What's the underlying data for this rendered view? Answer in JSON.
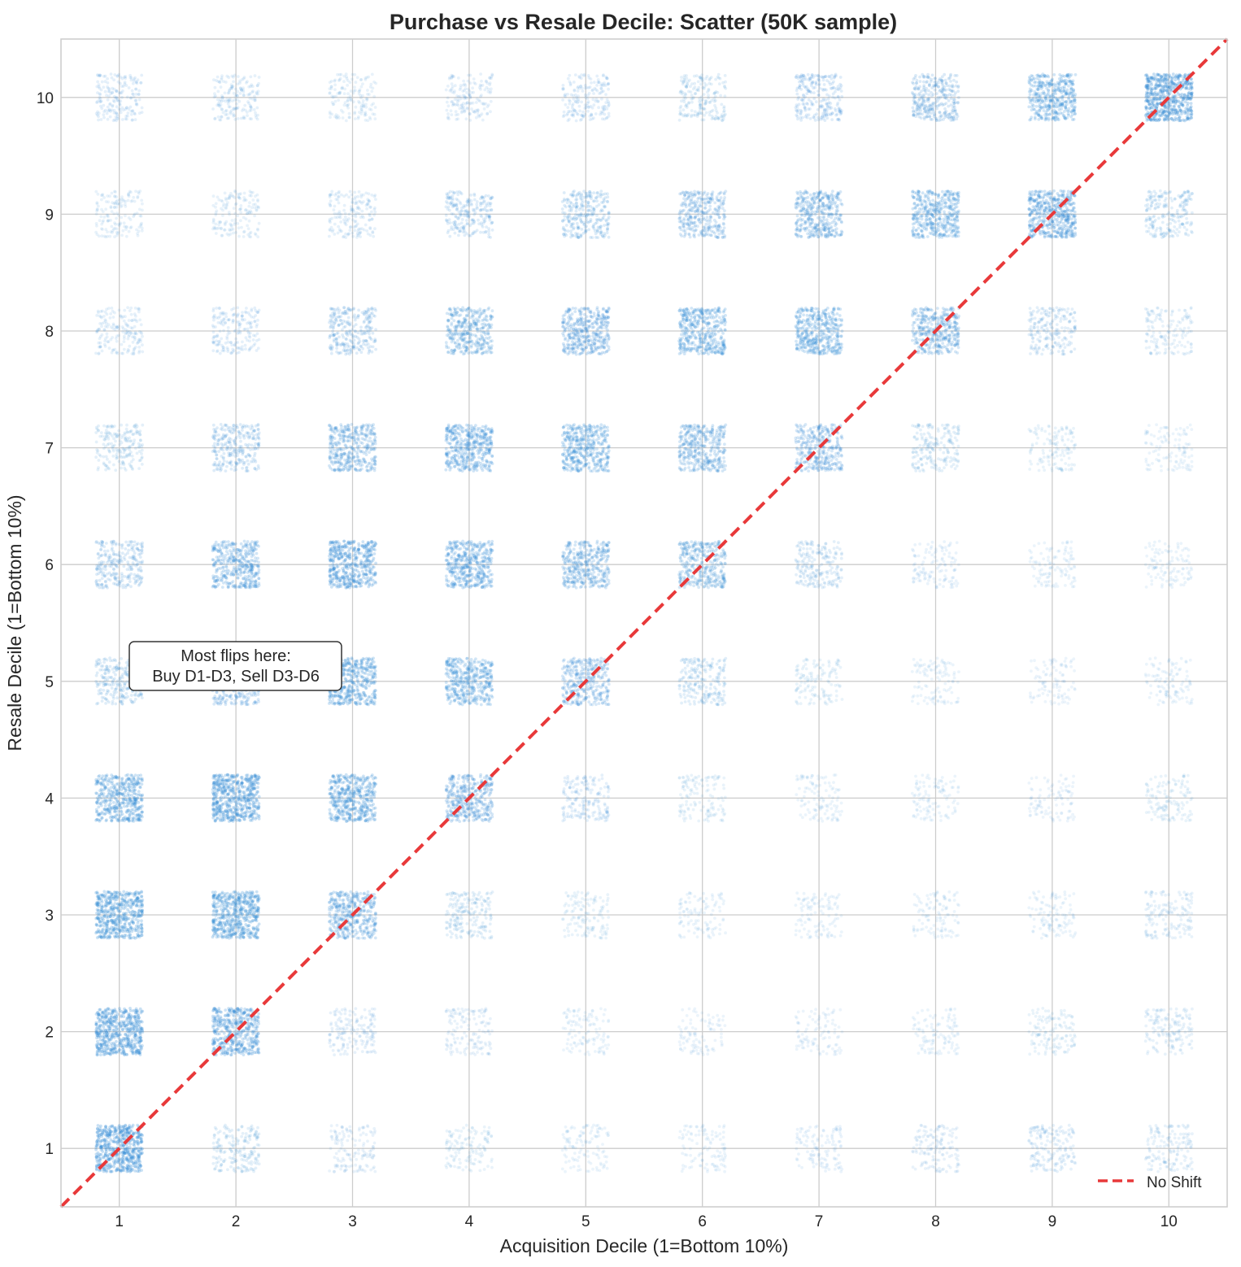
{
  "chart_data": {
    "type": "scatter",
    "title": "Purchase vs Resale Decile: Scatter (50K sample)",
    "xlabel": "Acquisition Decile (1=Bottom 10%)",
    "ylabel": "Resale Decile (1=Bottom 10%)",
    "xlim": [
      0.5,
      10.5
    ],
    "ylim": [
      0.5,
      10.5
    ],
    "x_ticks": [
      "1",
      "2",
      "3",
      "4",
      "5",
      "6",
      "7",
      "8",
      "9",
      "10"
    ],
    "y_ticks": [
      "1",
      "2",
      "3",
      "4",
      "5",
      "6",
      "7",
      "8",
      "9",
      "10"
    ],
    "grid": true,
    "point_color": "#3a8fd6",
    "jitter": 0.2,
    "series": [
      {
        "name": "",
        "x_decile": [
          1,
          2,
          3,
          4,
          5,
          6,
          7,
          8,
          9,
          10
        ],
        "y_decile": [
          1,
          2,
          3,
          4,
          5,
          6,
          7,
          8,
          9,
          10
        ],
        "relative_density_by_y": [
          [
            0.95,
            0.3,
            0.2,
            0.18,
            0.15,
            0.14,
            0.16,
            0.2,
            0.25,
            0.22
          ],
          [
            0.92,
            0.8,
            0.24,
            0.2,
            0.15,
            0.12,
            0.12,
            0.14,
            0.18,
            0.22
          ],
          [
            0.88,
            0.88,
            0.7,
            0.3,
            0.18,
            0.14,
            0.14,
            0.14,
            0.15,
            0.22
          ],
          [
            0.78,
            0.92,
            0.78,
            0.68,
            0.28,
            0.18,
            0.15,
            0.14,
            0.12,
            0.18
          ],
          [
            0.42,
            0.6,
            0.78,
            0.72,
            0.6,
            0.34,
            0.18,
            0.14,
            0.12,
            0.14
          ],
          [
            0.44,
            0.7,
            0.82,
            0.74,
            0.66,
            0.62,
            0.32,
            0.16,
            0.14,
            0.14
          ],
          [
            0.3,
            0.44,
            0.66,
            0.74,
            0.72,
            0.64,
            0.6,
            0.3,
            0.18,
            0.15
          ],
          [
            0.26,
            0.28,
            0.44,
            0.62,
            0.68,
            0.72,
            0.72,
            0.66,
            0.32,
            0.22
          ],
          [
            0.22,
            0.22,
            0.26,
            0.38,
            0.46,
            0.56,
            0.66,
            0.72,
            0.8,
            0.34
          ],
          [
            0.28,
            0.26,
            0.22,
            0.24,
            0.28,
            0.3,
            0.4,
            0.52,
            0.72,
            0.96
          ]
        ]
      }
    ],
    "reference_line": {
      "name": "No Shift",
      "from": [
        0.5,
        0.5
      ],
      "to": [
        10.5,
        10.5
      ],
      "color": "#e8393a",
      "style": "dashed"
    },
    "legend": {
      "placement": "lower-right",
      "entries": [
        "No Shift"
      ]
    },
    "annotation": {
      "lines": [
        "Most flips here:",
        "Buy D1-D3, Sell D3-D6"
      ],
      "x": 2,
      "y": 5.25
    }
  }
}
